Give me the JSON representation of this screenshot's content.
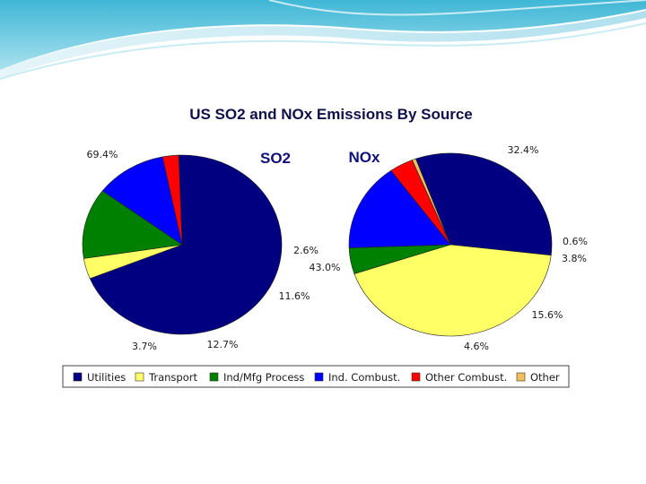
{
  "title": "US SO2 and NOx Emissions By Source",
  "legend": [
    {
      "label": "Utilities",
      "color": "#000080"
    },
    {
      "label": "Transport",
      "color": "#ffff66"
    },
    {
      "label": "Ind/Mfg Process",
      "color": "#008000"
    },
    {
      "label": "Ind. Combust.",
      "color": "#0000ff"
    },
    {
      "label": "Other Combust.",
      "color": "#ff0000"
    },
    {
      "label": "Other",
      "color": "#f0c060"
    }
  ],
  "chart_data": [
    {
      "type": "pie",
      "title": "SO2",
      "categories": [
        "Utilities",
        "Transport",
        "Ind/Mfg Process",
        "Ind. Combust.",
        "Other Combust.",
        "Other"
      ],
      "values": [
        69.4,
        3.7,
        12.7,
        11.6,
        2.6,
        0.0
      ],
      "labels": [
        "69.4%",
        "3.7%",
        "12.7%",
        "11.6%",
        "2.6%",
        ""
      ]
    },
    {
      "type": "pie",
      "title": "NOx",
      "categories": [
        "Utilities",
        "Transport",
        "Ind/Mfg Process",
        "Ind. Combust.",
        "Other Combust.",
        "Other"
      ],
      "values": [
        32.4,
        43.0,
        4.6,
        15.6,
        3.8,
        0.6
      ],
      "labels": [
        "32.4%",
        "43.0%",
        "4.6%",
        "15.6%",
        "3.8%",
        "0.6%"
      ]
    }
  ]
}
